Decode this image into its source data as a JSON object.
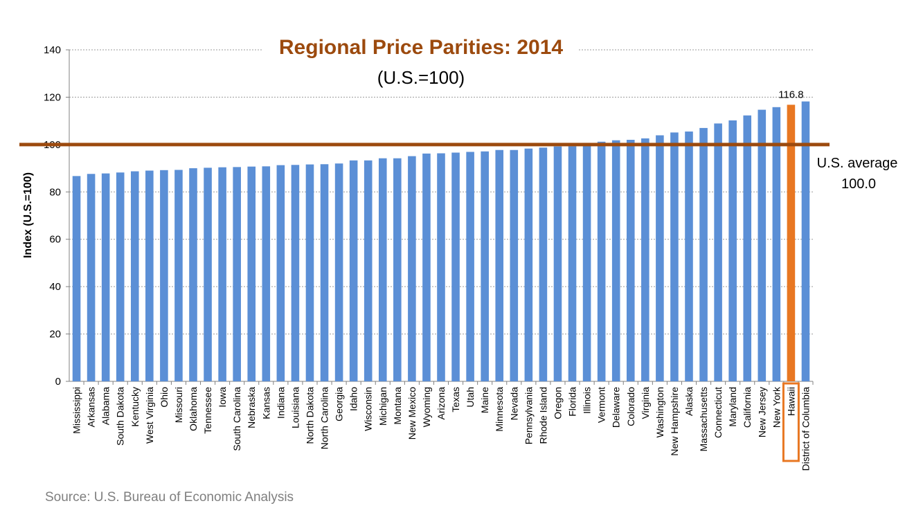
{
  "chart_data": {
    "type": "bar",
    "title": "Regional Price Parities: 2014",
    "subtitle": "(U.S.=100)",
    "xlabel": "",
    "ylabel": "Index (U.S.=100)",
    "ylim": [
      0,
      140
    ],
    "yticks": [
      0,
      20,
      40,
      60,
      80,
      100,
      120,
      140
    ],
    "grid": true,
    "categories": [
      "Mississippi",
      "Arkansas",
      "Alabama",
      "South Dakota",
      "Kentucky",
      "West Virginia",
      "Ohio",
      "Missouri",
      "Oklahoma",
      "Tennessee",
      "Iowa",
      "South Carolina",
      "Nebraska",
      "Kansas",
      "Indiana",
      "Louisiana",
      "North Dakota",
      "North Carolina",
      "Georgia",
      "Idaho",
      "Wisconsin",
      "Michigan",
      "Montana",
      "New Mexico",
      "Wyoming",
      "Arizona",
      "Texas",
      "Utah",
      "Maine",
      "Minnesota",
      "Nevada",
      "Pennsylvania",
      "Rhode Island",
      "Oregon",
      "Florida",
      "Illinois",
      "Vermont",
      "Delaware",
      "Colorado",
      "Virginia",
      "Washington",
      "New Hampshire",
      "Alaska",
      "Massachusetts",
      "Connecticut",
      "Maryland",
      "California",
      "New Jersey",
      "New York",
      "Hawaii",
      "District of Columbia"
    ],
    "values": [
      86.7,
      87.6,
      87.8,
      88.2,
      88.7,
      89.0,
      89.2,
      89.3,
      90.0,
      90.2,
      90.4,
      90.5,
      90.7,
      90.8,
      91.3,
      91.4,
      91.6,
      91.7,
      92.0,
      93.3,
      93.3,
      94.2,
      94.2,
      95.1,
      96.2,
      96.3,
      96.6,
      96.9,
      97.1,
      97.7,
      97.7,
      98.3,
      98.7,
      99.2,
      99.3,
      100.7,
      101.2,
      101.8,
      102.0,
      102.6,
      103.9,
      105.1,
      105.5,
      107.0,
      108.9,
      110.2,
      112.3,
      114.7,
      115.8,
      116.8,
      118.2
    ],
    "highlight": {
      "category": "Hawaii",
      "value_label": "116.8",
      "color": "#e87722"
    },
    "reference_line": {
      "value": 100,
      "label_line1": "U.S. average",
      "label_line2": "100.0",
      "color": "#9c4a0e"
    },
    "bar_color": "#5b8fd6"
  },
  "source": "Source: U.S. Bureau of Economic Analysis"
}
